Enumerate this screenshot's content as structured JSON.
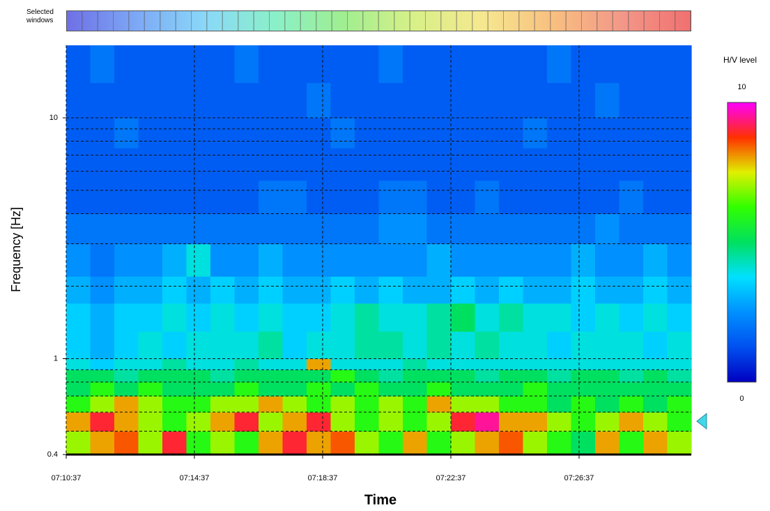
{
  "selected_windows_label": "Selected windows",
  "chart_data": {
    "type": "heatmap",
    "xlabel": "Time",
    "ylabel": "Frequency [Hz]",
    "colorbar_title": "H/V level",
    "ylog": true,
    "grid": true,
    "xlim": [
      25837,
      27007
    ],
    "xticks": [
      {
        "value": 25837,
        "label": "07:10:37"
      },
      {
        "value": 26077,
        "label": "07:14:37"
      },
      {
        "value": 26317,
        "label": "07:18:37"
      },
      {
        "value": 26557,
        "label": "07:22:37"
      },
      {
        "value": 26797,
        "label": "07:26:37"
      }
    ],
    "ylim": [
      0.4,
      20
    ],
    "yticks": [
      0.4,
      1,
      10
    ],
    "yminor": [
      0.5,
      0.6,
      0.7,
      0.8,
      0.9,
      2,
      3,
      4,
      5,
      6,
      7,
      8,
      9
    ],
    "zlim": [
      0,
      10
    ],
    "zticks": [
      0,
      10
    ],
    "colorscale": [
      "#0000c0",
      "#0050f0",
      "#0090ff",
      "#00e0ff",
      "#00e060",
      "#30ff00",
      "#e0f000",
      "#ff3000",
      "#ff00ff"
    ],
    "peak_marker": 0.55,
    "peak_marker_color": "#40d8e8",
    "xbins": [
      25837,
      25882,
      25927,
      25972,
      26017,
      26062,
      26107,
      26152,
      26197,
      26242,
      26287,
      26332,
      26377,
      26422,
      26467,
      26512,
      26557,
      26602,
      26647,
      26692,
      26737,
      26782,
      26827,
      26872,
      26917,
      26962,
      27007
    ],
    "ybins": [
      0.4,
      0.5,
      0.6,
      0.7,
      0.8,
      0.9,
      1,
      1.3,
      1.7,
      2.2,
      3,
      4,
      5.5,
      7.5,
      10,
      14,
      20
    ],
    "z": [
      [
        7,
        8,
        8.5,
        7,
        9,
        6,
        7,
        6,
        8,
        9,
        8,
        8.5,
        7,
        6,
        8,
        6,
        7,
        8,
        8.5,
        7,
        6,
        5,
        8,
        6,
        8,
        7
      ],
      [
        8,
        9,
        8,
        7,
        6,
        7,
        8,
        9,
        7,
        8,
        9,
        7,
        6,
        7,
        6,
        7,
        9,
        9.5,
        8,
        8,
        7,
        6,
        7,
        8,
        7,
        6
      ],
      [
        6,
        7,
        8,
        7,
        6,
        6,
        7,
        7,
        8,
        7,
        6,
        7,
        6,
        7,
        6,
        8,
        7,
        7,
        6,
        6,
        5,
        6,
        5,
        6,
        5,
        6
      ],
      [
        5,
        6,
        5,
        6,
        5,
        5,
        5,
        6,
        5,
        5,
        6,
        5,
        6,
        5,
        5,
        6,
        5,
        5,
        5,
        6,
        5,
        5,
        5,
        5,
        5,
        5
      ],
      [
        5,
        5,
        4.5,
        5,
        5,
        5,
        4.5,
        5,
        5,
        5,
        5,
        6,
        5,
        4.5,
        5,
        5,
        5,
        4.5,
        5,
        5,
        4.5,
        5,
        5,
        4.5,
        5,
        4.5
      ],
      [
        4,
        3.5,
        4,
        4,
        4.5,
        4,
        4,
        4.5,
        4,
        4,
        8,
        4,
        4,
        4,
        4.5,
        4,
        4,
        4,
        4,
        4,
        4,
        4,
        4,
        4,
        4,
        4
      ],
      [
        3.5,
        3,
        3.5,
        4,
        3.5,
        4,
        4,
        4,
        4.5,
        3.5,
        4,
        4,
        4.5,
        4.5,
        4,
        4.5,
        4,
        4.5,
        4,
        4,
        3.5,
        4,
        4,
        4,
        3.5,
        4
      ],
      [
        3.5,
        3,
        3.5,
        3.5,
        4,
        3.5,
        4,
        3.5,
        4,
        3.5,
        3.5,
        4,
        4.5,
        4,
        4,
        4.5,
        5,
        4,
        4.5,
        4,
        4,
        3.5,
        4,
        3.5,
        4,
        3.5
      ],
      [
        3,
        2.5,
        3,
        3,
        3.5,
        3,
        3.5,
        3,
        3.5,
        3,
        3,
        3.5,
        3,
        3.5,
        3,
        3,
        3.5,
        3,
        3.5,
        3,
        3,
        3.5,
        3,
        3,
        3.5,
        3
      ],
      [
        2.5,
        2,
        2.5,
        2.5,
        3,
        4,
        2.5,
        2.5,
        3,
        2.5,
        2.5,
        2.5,
        2.5,
        2.5,
        2.5,
        3,
        2.5,
        2.5,
        2.5,
        2.5,
        2.5,
        3,
        2.5,
        2.5,
        3,
        2.5
      ],
      [
        2,
        2,
        2,
        2,
        2,
        2,
        2,
        2,
        2,
        2,
        2,
        2,
        2,
        2.5,
        2.5,
        2,
        2,
        2,
        2,
        2,
        2,
        2,
        2.5,
        2,
        2,
        2
      ],
      [
        1.5,
        1.5,
        1.5,
        1.5,
        1.5,
        1.5,
        1.5,
        1.5,
        2,
        2,
        1.5,
        1.5,
        1.5,
        2,
        2,
        1.5,
        1.5,
        2,
        1.5,
        1.5,
        1.5,
        1.5,
        1.5,
        2,
        1.5,
        1.5
      ],
      [
        1.5,
        1.5,
        1.5,
        1.5,
        1.5,
        1.5,
        1.5,
        1.5,
        1.5,
        1.5,
        1.5,
        1.5,
        1.5,
        1.5,
        1.5,
        1.5,
        1.5,
        1.5,
        1.5,
        1.5,
        1.5,
        1.5,
        1.5,
        1.5,
        1.5,
        1.5
      ],
      [
        1.5,
        1.5,
        2,
        1.5,
        1.5,
        1.5,
        1.5,
        1.5,
        1.5,
        1.5,
        1.5,
        2,
        1.5,
        1.5,
        1.5,
        1.5,
        1.5,
        1.5,
        1.5,
        2,
        1.5,
        1.5,
        1.5,
        1.5,
        1.5,
        1.5
      ],
      [
        1.5,
        1.5,
        1.5,
        1.5,
        1.5,
        1.5,
        1.5,
        1.5,
        1.5,
        1.5,
        2,
        1.5,
        1.5,
        1.5,
        1.5,
        1.5,
        1.5,
        1.5,
        1.5,
        1.5,
        1.5,
        1.5,
        2,
        1.5,
        1.5,
        1.5
      ],
      [
        1.5,
        2,
        1.5,
        1.5,
        1.5,
        1.5,
        1.5,
        2,
        1.5,
        1.5,
        1.5,
        1.5,
        1.5,
        2,
        1.5,
        1.5,
        1.5,
        1.5,
        1.5,
        1.5,
        2,
        1.5,
        1.5,
        1.5,
        1.5,
        1.5
      ]
    ]
  }
}
